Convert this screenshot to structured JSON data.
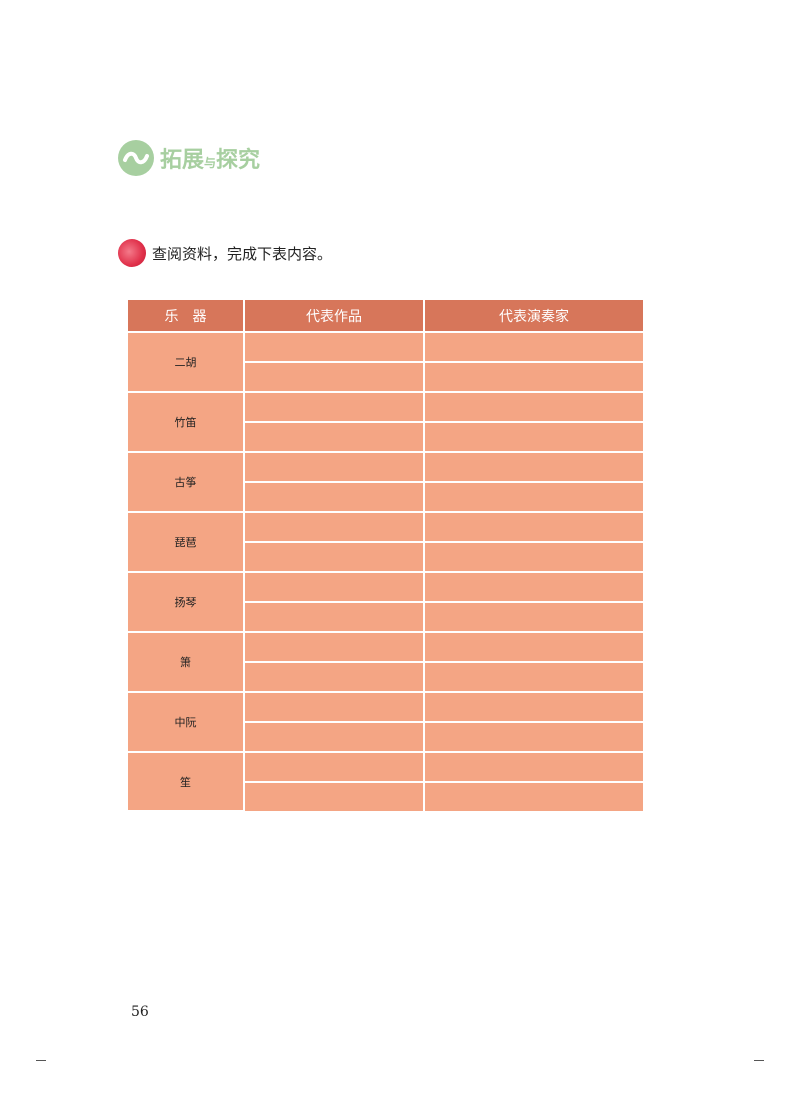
{
  "section": {
    "title_part1": "拓展",
    "title_small": "与",
    "title_part2": "探究",
    "icon": "wave-circle-icon",
    "color": "#a7cfa0"
  },
  "task": {
    "icon": "red-dot-icon",
    "text": "查阅资料，完成下表内容。"
  },
  "table": {
    "headers": [
      "乐　器",
      "代表作品",
      "代表演奏家"
    ],
    "instruments": [
      "二胡",
      "竹笛",
      "古筝",
      "琵琶",
      "扬琴",
      "箫",
      "中阮",
      "笙"
    ],
    "header_color": "#d7765a",
    "cell_color": "#f4a584"
  },
  "page_number": "56"
}
